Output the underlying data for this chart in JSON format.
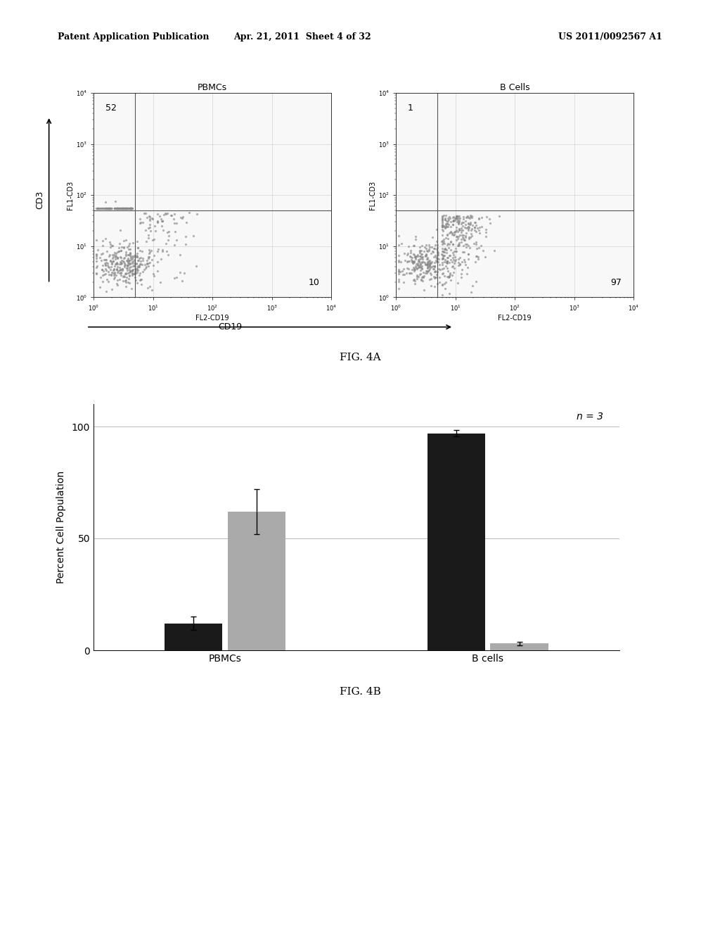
{
  "header_left": "Patent Application Publication",
  "header_middle": "Apr. 21, 2011  Sheet 4 of 32",
  "header_right": "US 2011/0092567 A1",
  "fig4a_title": "FIG. 4A",
  "fig4b_title": "FIG. 4B",
  "plot1_title": "PBMCs",
  "plot2_title": "B Cells",
  "plot1_quadrants": {
    "UL": "52",
    "UR": "",
    "LL": "",
    "LR": "10"
  },
  "plot2_quadrants": {
    "UL": "1",
    "UR": "",
    "LL": "",
    "LR": "97"
  },
  "xlabel": "FL2-CD19",
  "ylabel_left": "FL1-CD3",
  "axis_label_x": "CD19",
  "axis_label_y": "CD3",
  "bar_categories": [
    "PBMCs",
    "B cells"
  ],
  "bar_black_values": [
    12,
    97
  ],
  "bar_gray_values": [
    62,
    3
  ],
  "bar_black_errors": [
    3,
    1.5
  ],
  "bar_gray_errors": [
    10,
    0.8
  ],
  "bar_black_color": "#1a1a1a",
  "bar_gray_color": "#aaaaaa",
  "bar_ylabel": "Percent Cell Population",
  "bar_ylim": [
    0,
    110
  ],
  "bar_yticks": [
    0,
    50,
    100
  ],
  "annotation": "n = 3",
  "bg_color": "#ffffff",
  "scatter_dot_color": "#888888",
  "scatter_dot_alpha": 0.5,
  "scatter_dot_size": 2
}
